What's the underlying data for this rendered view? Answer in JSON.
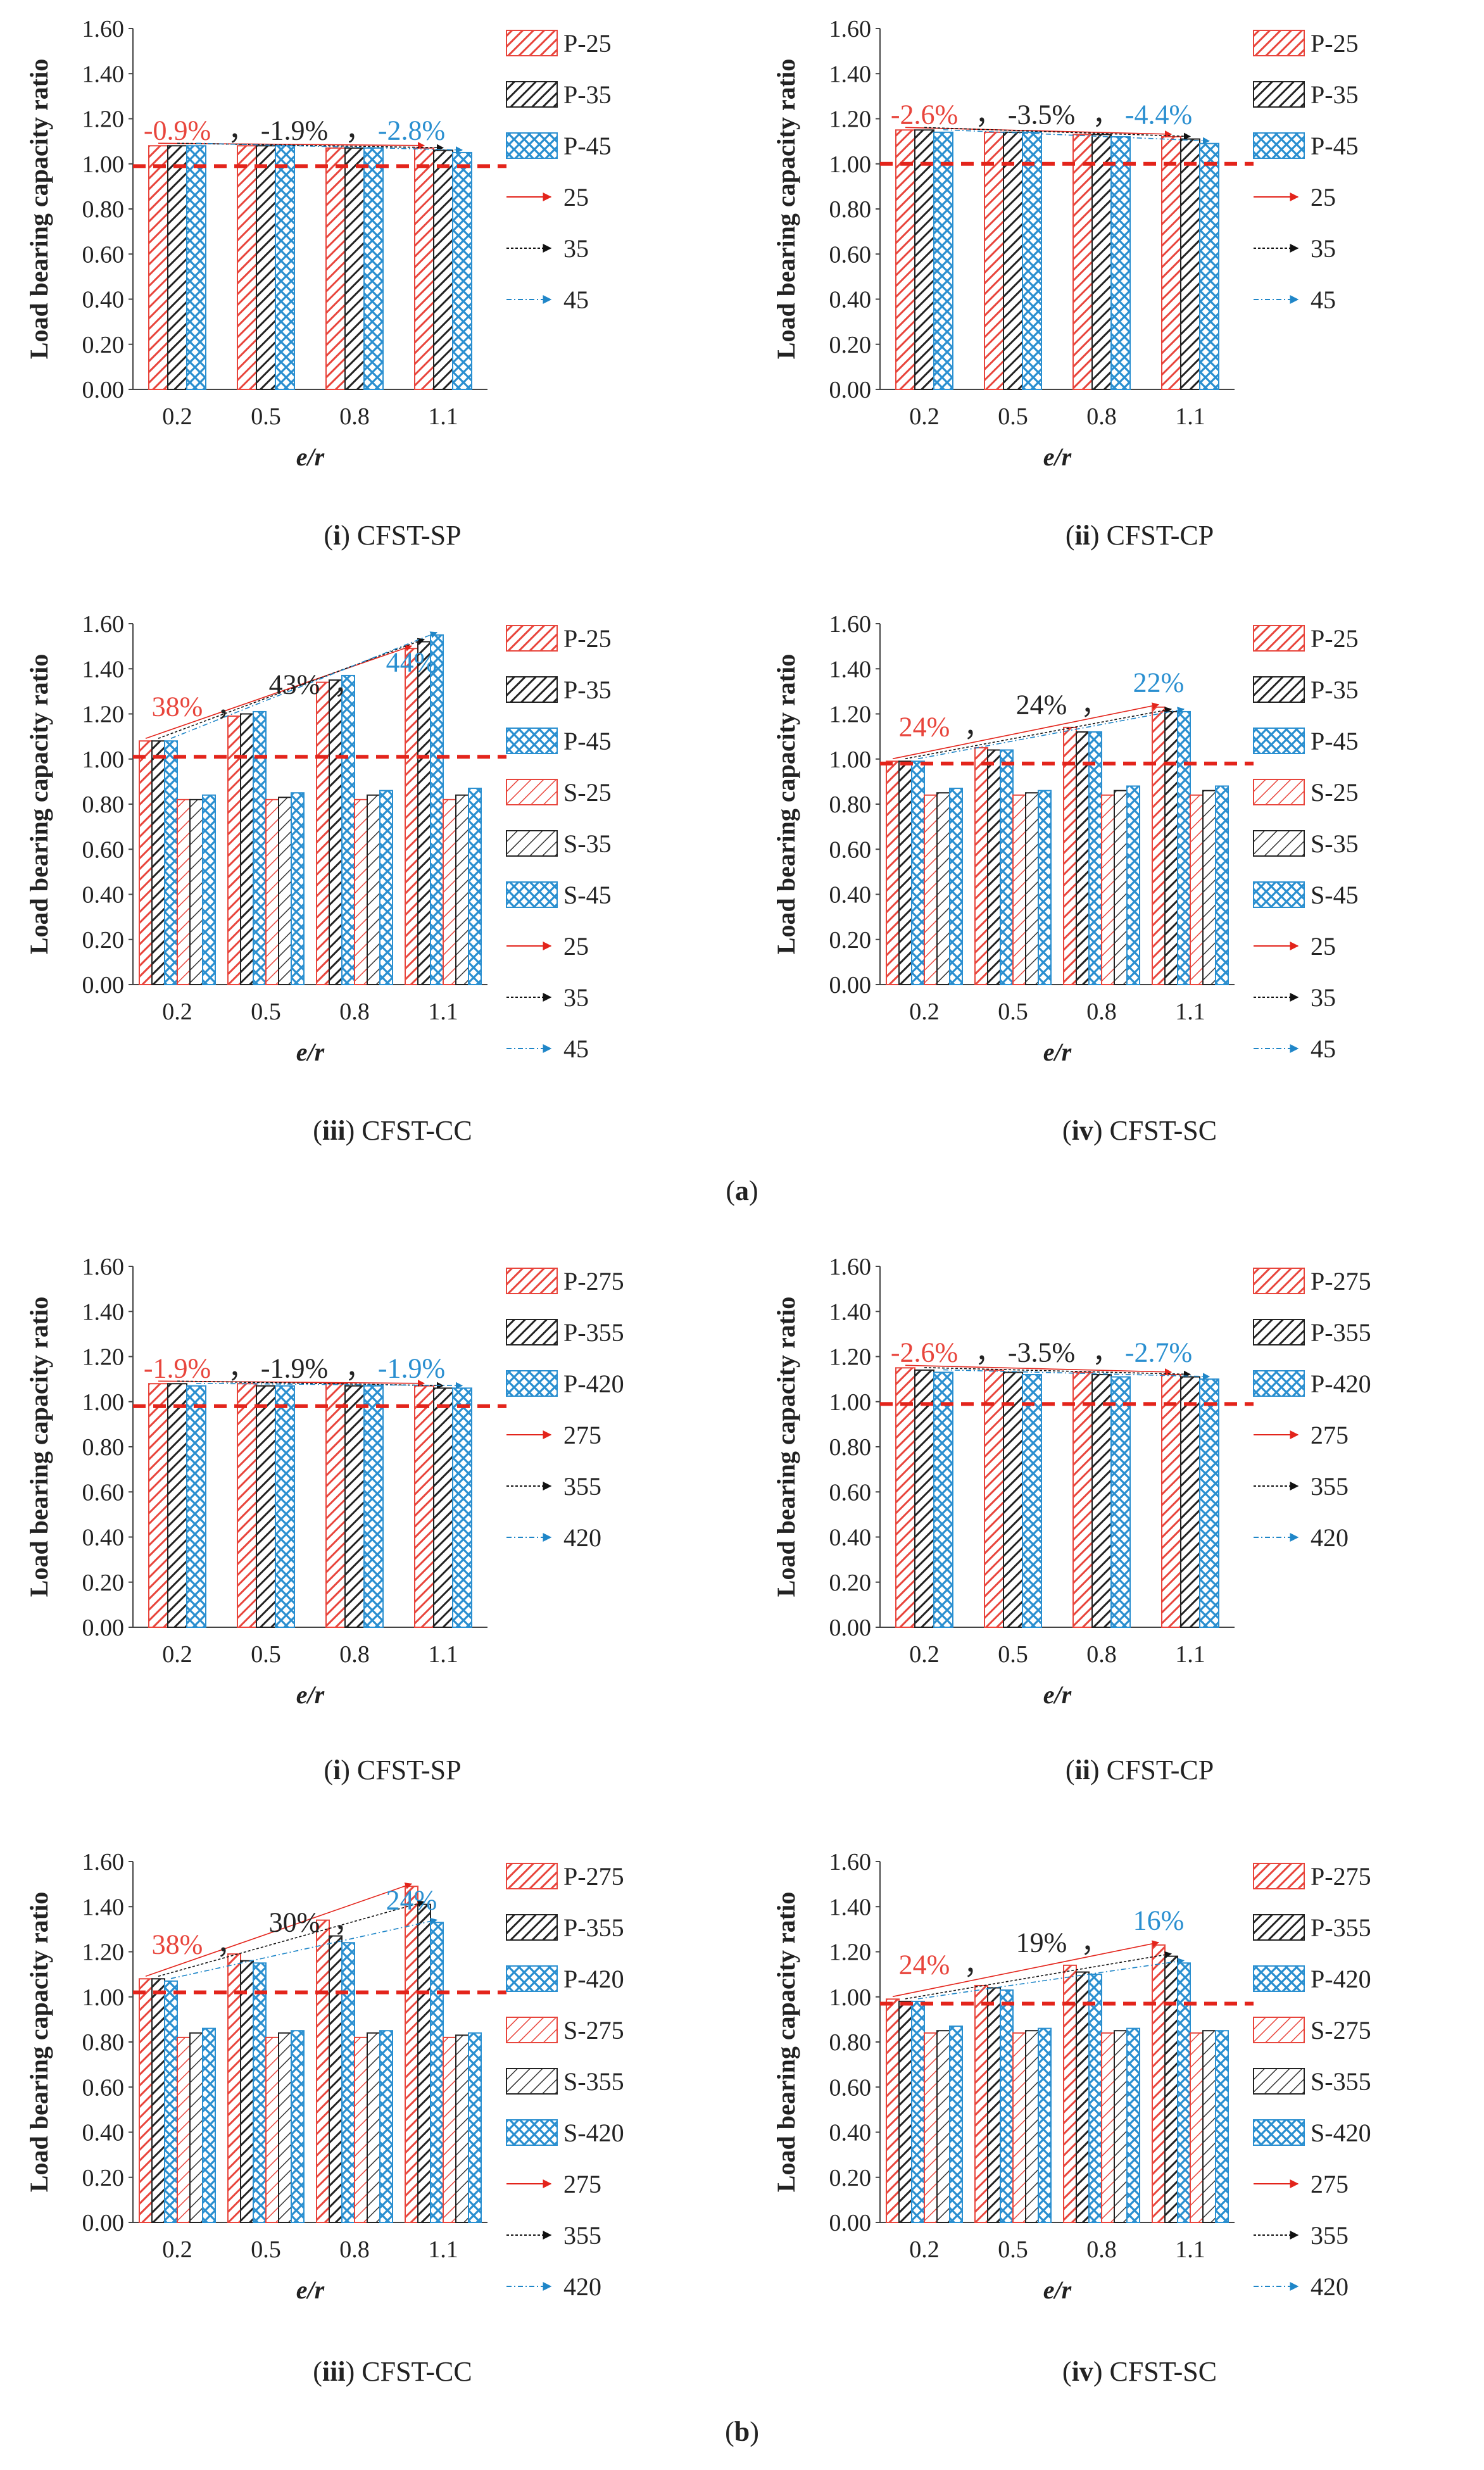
{
  "colors": {
    "red": "#e8453c",
    "black": "#222222",
    "blue": "#2a8fd0",
    "dashed": "#e3241b"
  },
  "groups": [
    {
      "label": "(a)",
      "letter": "a"
    },
    {
      "label": "(b)",
      "letter": "b"
    }
  ],
  "chart_data": [
    {
      "type": "bar",
      "caption_num": "i",
      "caption_text": "CFST-SP",
      "ylabel": "Load bearing capacity ratio",
      "xlabel": "e/r",
      "ylim": [
        0,
        1.6
      ],
      "yticks": [
        "0.00",
        "0.20",
        "0.40",
        "0.60",
        "0.80",
        "1.00",
        "1.20",
        "1.40",
        "1.60"
      ],
      "categories": [
        "0.2",
        "0.5",
        "0.8",
        "1.1"
      ],
      "series": [
        {
          "name": "P-25",
          "values": [
            1.08,
            1.08,
            1.07,
            1.07
          ],
          "color": "red",
          "pattern": "hatch"
        },
        {
          "name": "P-35",
          "values": [
            1.08,
            1.08,
            1.07,
            1.06
          ],
          "color": "black",
          "pattern": "hatch"
        },
        {
          "name": "P-45",
          "values": [
            1.08,
            1.08,
            1.07,
            1.05
          ],
          "color": "blue",
          "pattern": "cross"
        }
      ],
      "trend_legend": [
        "25",
        "35",
        "45"
      ],
      "annotations": [
        {
          "text": "-0.9%",
          "color": "red"
        },
        {
          "text": "-1.9%",
          "color": "black"
        },
        {
          "text": "-2.8%",
          "color": "blue"
        }
      ],
      "ref_line": 0.99
    },
    {
      "type": "bar",
      "caption_num": "ii",
      "caption_text": "CFST-CP",
      "ylabel": "Load bearing capacity ratio",
      "xlabel": "e/r",
      "ylim": [
        0,
        1.6
      ],
      "yticks": [
        "0.00",
        "0.20",
        "0.40",
        "0.60",
        "0.80",
        "1.00",
        "1.20",
        "1.40",
        "1.60"
      ],
      "categories": [
        "0.2",
        "0.5",
        "0.8",
        "1.1"
      ],
      "series": [
        {
          "name": "P-25",
          "values": [
            1.15,
            1.14,
            1.13,
            1.12
          ],
          "color": "red",
          "pattern": "hatch"
        },
        {
          "name": "P-35",
          "values": [
            1.15,
            1.14,
            1.13,
            1.11
          ],
          "color": "black",
          "pattern": "hatch"
        },
        {
          "name": "P-45",
          "values": [
            1.14,
            1.14,
            1.12,
            1.09
          ],
          "color": "blue",
          "pattern": "cross"
        }
      ],
      "trend_legend": [
        "25",
        "35",
        "45"
      ],
      "annotations": [
        {
          "text": "-2.6%",
          "color": "red"
        },
        {
          "text": "-3.5%",
          "color": "black"
        },
        {
          "text": "-4.4%",
          "color": "blue"
        }
      ],
      "ref_line": 1.0
    },
    {
      "type": "bar",
      "caption_num": "iii",
      "caption_text": "CFST-CC",
      "ylabel": "Load bearing capacity ratio",
      "xlabel": "e/r",
      "ylim": [
        0,
        1.6
      ],
      "yticks": [
        "0.00",
        "0.20",
        "0.40",
        "0.60",
        "0.80",
        "1.00",
        "1.20",
        "1.40",
        "1.60"
      ],
      "categories": [
        "0.2",
        "0.5",
        "0.8",
        "1.1"
      ],
      "series": [
        {
          "name": "P-25",
          "values": [
            1.08,
            1.19,
            1.34,
            1.49
          ],
          "color": "red",
          "pattern": "hatch"
        },
        {
          "name": "P-35",
          "values": [
            1.08,
            1.2,
            1.35,
            1.52
          ],
          "color": "black",
          "pattern": "hatch"
        },
        {
          "name": "P-45",
          "values": [
            1.08,
            1.21,
            1.37,
            1.55
          ],
          "color": "blue",
          "pattern": "cross"
        },
        {
          "name": "S-25",
          "values": [
            0.82,
            0.82,
            0.82,
            0.82
          ],
          "color": "red",
          "pattern": "hatch-light"
        },
        {
          "name": "S-35",
          "values": [
            0.82,
            0.83,
            0.84,
            0.84
          ],
          "color": "black",
          "pattern": "hatch-light"
        },
        {
          "name": "S-45",
          "values": [
            0.84,
            0.85,
            0.86,
            0.87
          ],
          "color": "blue",
          "pattern": "cross"
        }
      ],
      "trend_legend": [
        "25",
        "35",
        "45"
      ],
      "annotations": [
        {
          "text": "38%",
          "color": "red"
        },
        {
          "text": "43%",
          "color": "black"
        },
        {
          "text": "44%",
          "color": "blue"
        }
      ],
      "ref_line": 1.01
    },
    {
      "type": "bar",
      "caption_num": "iv",
      "caption_text": "CFST-SC",
      "ylabel": "Load bearing capacity ratio",
      "xlabel": "e/r",
      "ylim": [
        0,
        1.6
      ],
      "yticks": [
        "0.00",
        "0.20",
        "0.40",
        "0.60",
        "0.80",
        "1.00",
        "1.20",
        "1.40",
        "1.60"
      ],
      "categories": [
        "0.2",
        "0.5",
        "0.8",
        "1.1"
      ],
      "series": [
        {
          "name": "P-25",
          "values": [
            0.99,
            1.05,
            1.14,
            1.23
          ],
          "color": "red",
          "pattern": "hatch"
        },
        {
          "name": "P-35",
          "values": [
            0.99,
            1.04,
            1.12,
            1.21
          ],
          "color": "black",
          "pattern": "hatch"
        },
        {
          "name": "P-45",
          "values": [
            0.99,
            1.04,
            1.12,
            1.21
          ],
          "color": "blue",
          "pattern": "cross"
        },
        {
          "name": "S-25",
          "values": [
            0.84,
            0.84,
            0.84,
            0.84
          ],
          "color": "red",
          "pattern": "hatch-light"
        },
        {
          "name": "S-35",
          "values": [
            0.85,
            0.85,
            0.86,
            0.86
          ],
          "color": "black",
          "pattern": "hatch-light"
        },
        {
          "name": "S-45",
          "values": [
            0.87,
            0.86,
            0.88,
            0.88
          ],
          "color": "blue",
          "pattern": "cross"
        }
      ],
      "trend_legend": [
        "25",
        "35",
        "45"
      ],
      "annotations": [
        {
          "text": "24%",
          "color": "red"
        },
        {
          "text": "24%",
          "color": "black"
        },
        {
          "text": "22%",
          "color": "blue"
        }
      ],
      "ref_line": 0.98
    },
    {
      "type": "bar",
      "caption_num": "i",
      "caption_text": "CFST-SP",
      "ylabel": "Load bearing capacity ratio",
      "xlabel": "e/r",
      "ylim": [
        0,
        1.6
      ],
      "yticks": [
        "0.00",
        "0.20",
        "0.40",
        "0.60",
        "0.80",
        "1.00",
        "1.20",
        "1.40",
        "1.60"
      ],
      "categories": [
        "0.2",
        "0.5",
        "0.8",
        "1.1"
      ],
      "series": [
        {
          "name": "P-275",
          "values": [
            1.08,
            1.08,
            1.08,
            1.07
          ],
          "color": "red",
          "pattern": "hatch"
        },
        {
          "name": "P-355",
          "values": [
            1.08,
            1.07,
            1.07,
            1.06
          ],
          "color": "black",
          "pattern": "hatch"
        },
        {
          "name": "P-420",
          "values": [
            1.07,
            1.07,
            1.07,
            1.06
          ],
          "color": "blue",
          "pattern": "cross"
        }
      ],
      "trend_legend": [
        "275",
        "355",
        "420"
      ],
      "annotations": [
        {
          "text": "-1.9%",
          "color": "red"
        },
        {
          "text": "-1.9%",
          "color": "black"
        },
        {
          "text": "-1.9%",
          "color": "blue"
        }
      ],
      "ref_line": 0.98
    },
    {
      "type": "bar",
      "caption_num": "ii",
      "caption_text": "CFST-CP",
      "ylabel": "Load bearing capacity ratio",
      "xlabel": "e/r",
      "ylim": [
        0,
        1.6
      ],
      "yticks": [
        "0.00",
        "0.20",
        "0.40",
        "0.60",
        "0.80",
        "1.00",
        "1.20",
        "1.40",
        "1.60"
      ],
      "categories": [
        "0.2",
        "0.5",
        "0.8",
        "1.1"
      ],
      "series": [
        {
          "name": "P-275",
          "values": [
            1.15,
            1.14,
            1.13,
            1.12
          ],
          "color": "red",
          "pattern": "hatch"
        },
        {
          "name": "P-355",
          "values": [
            1.14,
            1.13,
            1.12,
            1.11
          ],
          "color": "black",
          "pattern": "hatch"
        },
        {
          "name": "P-420",
          "values": [
            1.13,
            1.12,
            1.11,
            1.1
          ],
          "color": "blue",
          "pattern": "cross"
        }
      ],
      "trend_legend": [
        "275",
        "355",
        "420"
      ],
      "annotations": [
        {
          "text": "-2.6%",
          "color": "red"
        },
        {
          "text": "-3.5%",
          "color": "black"
        },
        {
          "text": "-2.7%",
          "color": "blue"
        }
      ],
      "ref_line": 0.99
    },
    {
      "type": "bar",
      "caption_num": "iii",
      "caption_text": "CFST-CC",
      "ylabel": "Load bearing capacity ratio",
      "xlabel": "e/r",
      "ylim": [
        0,
        1.6
      ],
      "yticks": [
        "0.00",
        "0.20",
        "0.40",
        "0.60",
        "0.80",
        "1.00",
        "1.20",
        "1.40",
        "1.60"
      ],
      "categories": [
        "0.2",
        "0.5",
        "0.8",
        "1.1"
      ],
      "series": [
        {
          "name": "P-275",
          "values": [
            1.08,
            1.19,
            1.34,
            1.49
          ],
          "color": "red",
          "pattern": "hatch"
        },
        {
          "name": "P-355",
          "values": [
            1.08,
            1.16,
            1.27,
            1.41
          ],
          "color": "black",
          "pattern": "hatch"
        },
        {
          "name": "P-420",
          "values": [
            1.07,
            1.15,
            1.24,
            1.33
          ],
          "color": "blue",
          "pattern": "cross"
        },
        {
          "name": "S-275",
          "values": [
            0.82,
            0.82,
            0.82,
            0.82
          ],
          "color": "red",
          "pattern": "hatch-light"
        },
        {
          "name": "S-355",
          "values": [
            0.84,
            0.84,
            0.84,
            0.83
          ],
          "color": "black",
          "pattern": "hatch-light"
        },
        {
          "name": "S-420",
          "values": [
            0.86,
            0.85,
            0.85,
            0.84
          ],
          "color": "blue",
          "pattern": "cross"
        }
      ],
      "trend_legend": [
        "275",
        "355",
        "420"
      ],
      "annotations": [
        {
          "text": "38%",
          "color": "red"
        },
        {
          "text": "30%",
          "color": "black"
        },
        {
          "text": "24%",
          "color": "blue"
        }
      ],
      "ref_line": 1.02
    },
    {
      "type": "bar",
      "caption_num": "iv",
      "caption_text": "CFST-SC",
      "ylabel": "Load bearing capacity ratio",
      "xlabel": "e/r",
      "ylim": [
        0,
        1.6
      ],
      "yticks": [
        "0.00",
        "0.20",
        "0.40",
        "0.60",
        "0.80",
        "1.00",
        "1.20",
        "1.40",
        "1.60"
      ],
      "categories": [
        "0.2",
        "0.5",
        "0.8",
        "1.1"
      ],
      "series": [
        {
          "name": "P-275",
          "values": [
            0.99,
            1.05,
            1.14,
            1.23
          ],
          "color": "red",
          "pattern": "hatch"
        },
        {
          "name": "P-355",
          "values": [
            0.98,
            1.04,
            1.11,
            1.18
          ],
          "color": "black",
          "pattern": "hatch"
        },
        {
          "name": "P-420",
          "values": [
            0.98,
            1.03,
            1.1,
            1.15
          ],
          "color": "blue",
          "pattern": "cross"
        },
        {
          "name": "S-275",
          "values": [
            0.84,
            0.84,
            0.84,
            0.84
          ],
          "color": "red",
          "pattern": "hatch-light"
        },
        {
          "name": "S-355",
          "values": [
            0.85,
            0.85,
            0.85,
            0.85
          ],
          "color": "black",
          "pattern": "hatch-light"
        },
        {
          "name": "S-420",
          "values": [
            0.87,
            0.86,
            0.86,
            0.85
          ],
          "color": "blue",
          "pattern": "cross"
        }
      ],
      "trend_legend": [
        "275",
        "355",
        "420"
      ],
      "annotations": [
        {
          "text": "24%",
          "color": "red"
        },
        {
          "text": "19%",
          "color": "black"
        },
        {
          "text": "16%",
          "color": "blue"
        }
      ],
      "ref_line": 0.97
    }
  ]
}
